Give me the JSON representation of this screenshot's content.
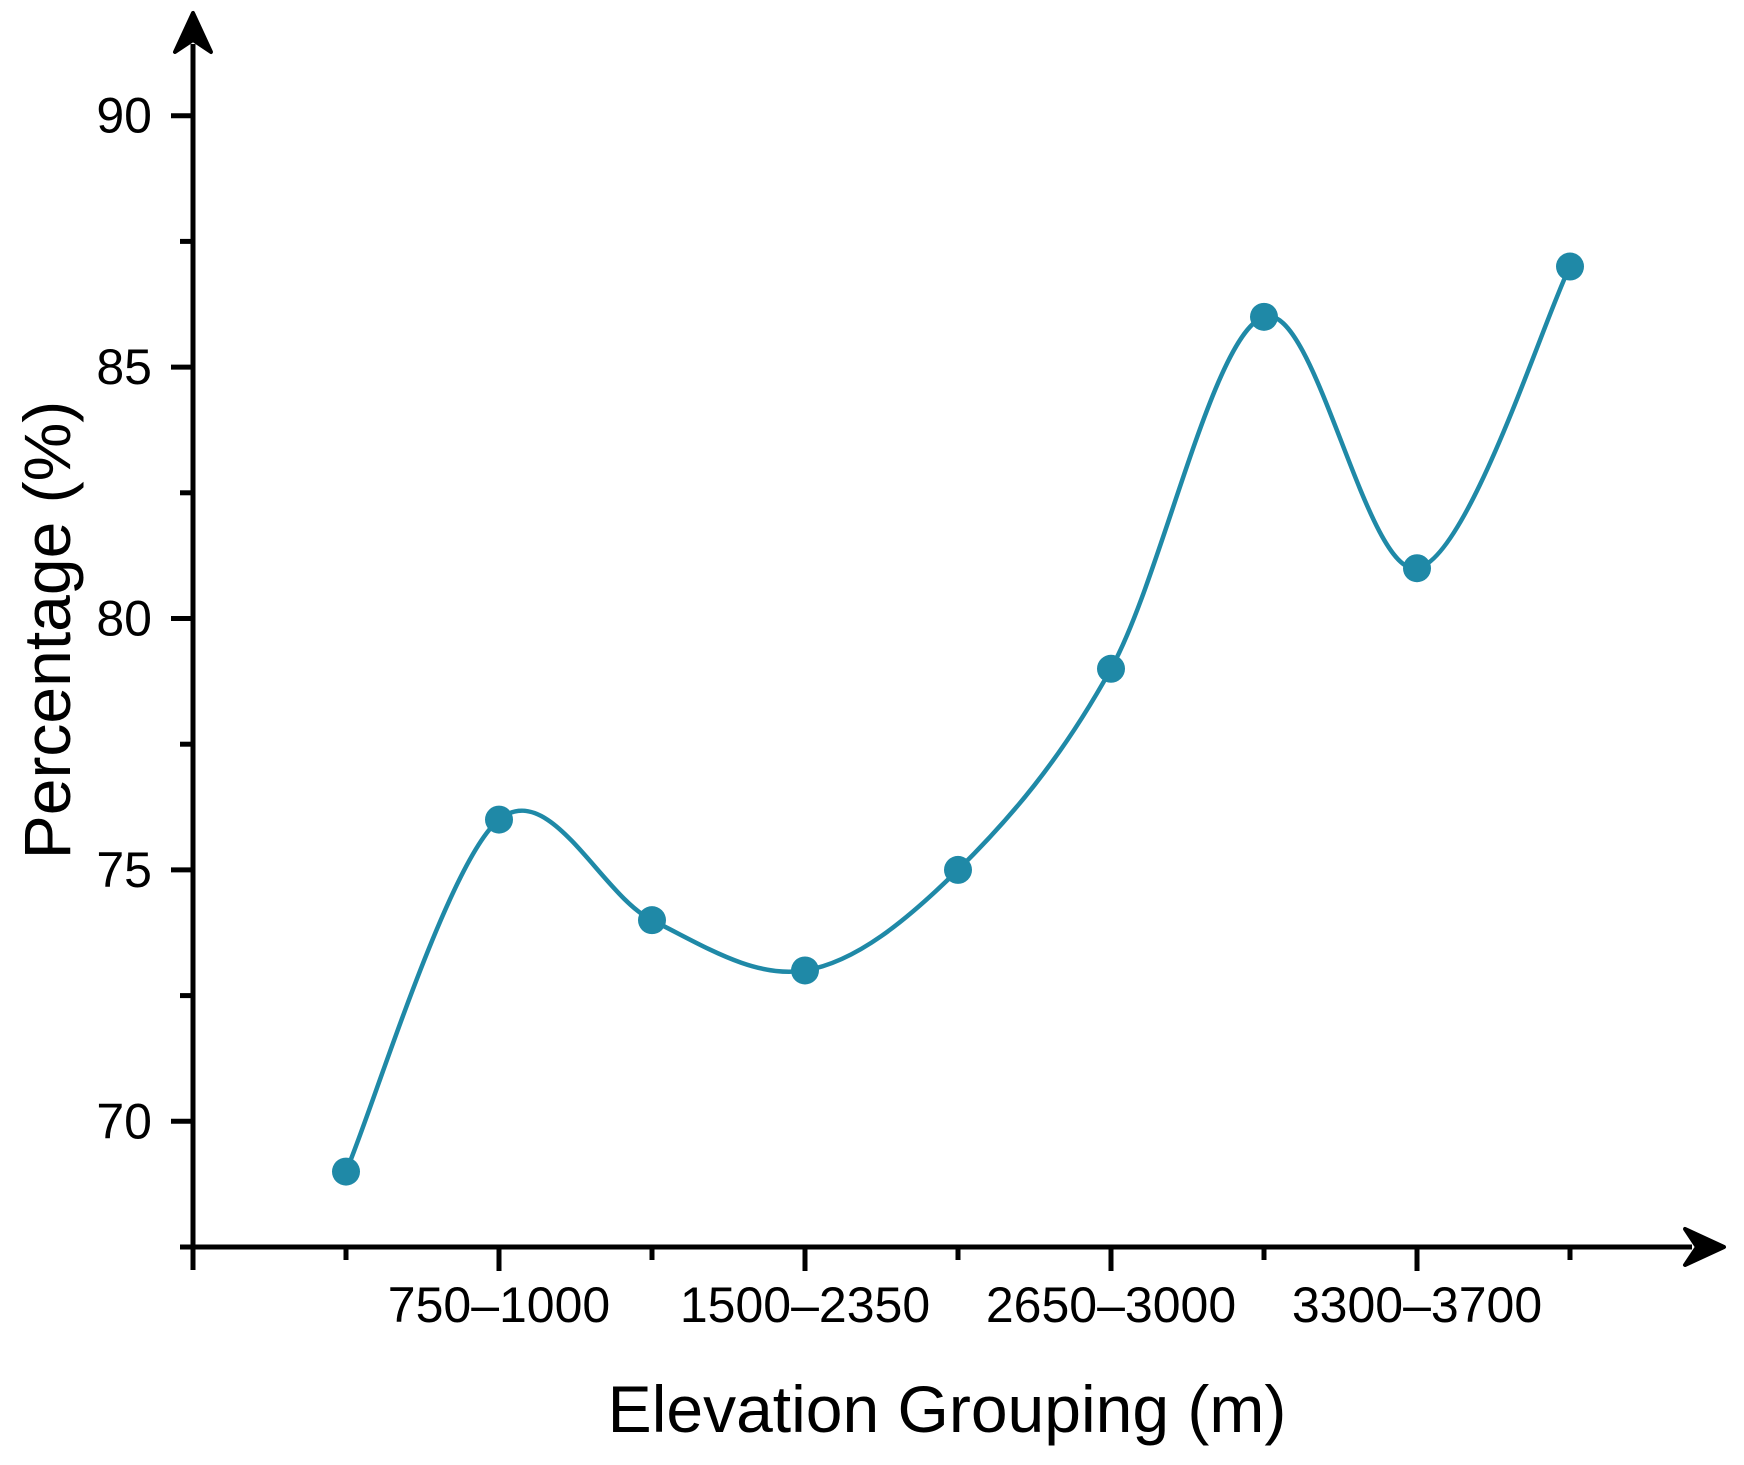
{
  "chart_data": {
    "type": "line",
    "title": "",
    "xlabel": "Elevation Grouping (m)",
    "ylabel": "Percentage (%)",
    "series": [
      {
        "name": "Percentage",
        "values": [
          69,
          76,
          74,
          73,
          75,
          79,
          86,
          81,
          87
        ],
        "color": "#1F89A7",
        "marker": "circle",
        "line_style": "smooth-spline"
      }
    ],
    "num_points": 9,
    "x_tick_labels": [
      "750–1000",
      "1500–2350",
      "2650–3000",
      "3300–3700"
    ],
    "x_labeled_point_indices": [
      1,
      3,
      5,
      7
    ],
    "y_major_ticks": [
      90,
      85,
      80,
      75,
      70
    ],
    "y_minor_ticks": [
      87.5,
      82.5,
      77.5,
      72.5,
      67.5
    ],
    "ylim": [
      67.5,
      92.5
    ],
    "grid": false,
    "legend_position": "none",
    "axis_color": "#000000",
    "axis_arrows": true
  }
}
